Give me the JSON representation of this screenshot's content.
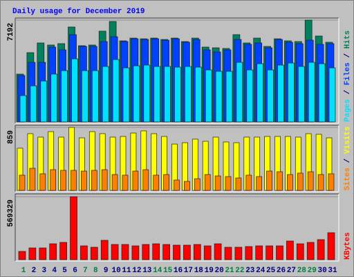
{
  "chart_data": [
    {
      "type": "bar",
      "title": "Daily usage for December 2019",
      "ylim": [
        0,
        7192
      ],
      "yticks": [
        7192
      ],
      "legend_separator": " / ",
      "series": [
        {
          "name": "Hits",
          "color": "#00805c",
          "values": [
            3376,
            4893,
            5578,
            5431,
            5529,
            6703,
            5382,
            5431,
            6410,
            7095,
            5725,
            5920,
            5871,
            5920,
            5822,
            5920,
            5676,
            5920,
            5284,
            5235,
            5187,
            6165,
            5578,
            5920,
            5333,
            5871,
            5725,
            5676,
            7192,
            6067,
            5627
          ]
        },
        {
          "name": "Files",
          "color": "#0040ff",
          "values": [
            3278,
            4208,
            4208,
            5284,
            5089,
            6165,
            5333,
            5333,
            5676,
            6018,
            5676,
            5872,
            5823,
            5872,
            5774,
            5872,
            5627,
            5823,
            5089,
            4942,
            5089,
            5823,
            5480,
            5578,
            5236,
            5823,
            5627,
            5529,
            5774,
            5480,
            5529
          ]
        },
        {
          "name": "Pages",
          "color": "#00e0ff",
          "values": [
            1859,
            2544,
            2887,
            3376,
            3621,
            4453,
            3621,
            3621,
            3914,
            4404,
            3817,
            3963,
            4012,
            3914,
            3914,
            3866,
            3914,
            3866,
            3670,
            3572,
            3572,
            4208,
            3670,
            4110,
            3670,
            4012,
            4159,
            3914,
            4208,
            4110,
            3817
          ]
        }
      ]
    },
    {
      "type": "bar",
      "ylim": [
        0,
        859
      ],
      "yticks": [
        859
      ],
      "legend_separator": " / ",
      "series": [
        {
          "name": "Visits",
          "color": "#ffff00",
          "values": [
            576,
            774,
            727,
            802,
            727,
            859,
            717,
            802,
            774,
            727,
            736,
            783,
            812,
            774,
            736,
            632,
            651,
            699,
            670,
            727,
            661,
            651,
            727,
            727,
            736,
            736,
            736,
            727,
            774,
            765,
            717
          ]
        },
        {
          "name": "Sites",
          "color": "#ff8000",
          "values": [
            208,
            302,
            227,
            283,
            274,
            274,
            264,
            274,
            283,
            217,
            208,
            264,
            283,
            208,
            217,
            142,
            123,
            160,
            217,
            198,
            189,
            170,
            208,
            189,
            264,
            255,
            217,
            236,
            255,
            217,
            227
          ]
        }
      ]
    },
    {
      "type": "bar",
      "ylim": [
        0,
        569329
      ],
      "yticks": [
        569329
      ],
      "categories": [
        "1",
        "2",
        "3",
        "4",
        "5",
        "6",
        "7",
        "8",
        "9",
        "10",
        "11",
        "12",
        "13",
        "14",
        "15",
        "16",
        "17",
        "18",
        "19",
        "20",
        "21",
        "22",
        "23",
        "24",
        "25",
        "26",
        "27",
        "28",
        "29",
        "30",
        "31"
      ],
      "category_colors": [
        "#008040",
        "#000080",
        "#000080",
        "#000080",
        "#000080",
        "#000080",
        "#008040",
        "#008040",
        "#000080",
        "#000080",
        "#000080",
        "#000080",
        "#000080",
        "#008040",
        "#008040",
        "#000080",
        "#000080",
        "#000080",
        "#000080",
        "#000080",
        "#008040",
        "#008040",
        "#000080",
        "#000080",
        "#000080",
        "#000080",
        "#000080",
        "#008040",
        "#008040",
        "#000080",
        "#000080"
      ],
      "series": [
        {
          "name": "KBytes",
          "color": "#ff0000",
          "values": [
            75072,
            106352,
            106352,
            143888,
            156400,
            569329,
            125120,
            112608,
            175168,
            137632,
            137632,
            125120,
            137632,
            143888,
            137632,
            131376,
            131376,
            137632,
            125120,
            143888,
            112608,
            112608,
            118864,
            125120,
            125120,
            125120,
            168912,
            143888,
            156400,
            181424,
            243984
          ]
        }
      ]
    }
  ]
}
